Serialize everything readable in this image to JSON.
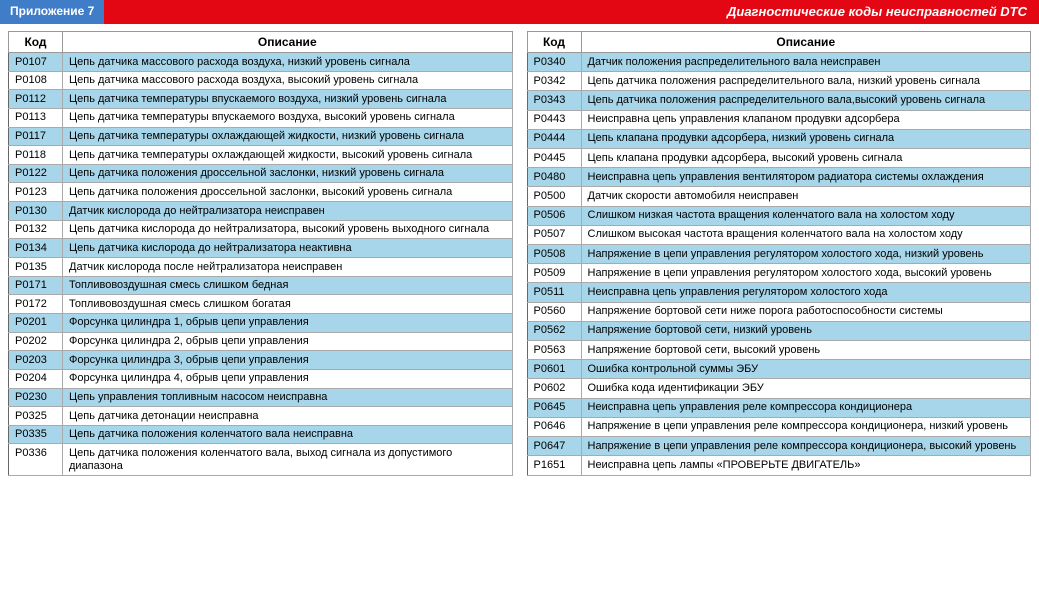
{
  "header": {
    "left": "Приложение 7",
    "right": "Диагностические коды неисправностей DTC"
  },
  "table_headers": {
    "code": "Код",
    "desc": "Описание"
  },
  "colors": {
    "header_left_bg": "#3f7dc8",
    "header_right_bg": "#e30613",
    "alt_row_bg": "#a7d5e9",
    "norm_row_bg": "#ffffff",
    "border": "#999999",
    "text": "#000000"
  },
  "left_table": [
    {
      "code": "P0107",
      "desc": "Цепь датчика массового расхода воздуха, низкий уровень сигнала"
    },
    {
      "code": "P0108",
      "desc": "Цепь датчика массового расхода воздуха, высокий уровень сигнала"
    },
    {
      "code": "P0112",
      "desc": "Цепь датчика температуры впускаемого воздуха, низкий уровень сигнала"
    },
    {
      "code": "P0113",
      "desc": "Цепь датчика температуры впускаемого воздуха, высокий уровень сигнала"
    },
    {
      "code": "P0117",
      "desc": "Цепь датчика температуры охлаждающей жидкости, низкий уровень сигнала"
    },
    {
      "code": "P0118",
      "desc": "Цепь датчика температуры охлаждающей жидкости, высокий уровень сигнала"
    },
    {
      "code": "P0122",
      "desc": "Цепь датчика положения дроссельной заслонки, низкий уровень сигнала"
    },
    {
      "code": "P0123",
      "desc": "Цепь датчика положения дроссельной заслонки, высокий уровень сигнала"
    },
    {
      "code": "P0130",
      "desc": "Датчик кислорода до нейтрализатора неисправен"
    },
    {
      "code": "P0132",
      "desc": "Цепь датчика кислорода до нейтрализатора, высокий уровень выходного сигнала"
    },
    {
      "code": "P0134",
      "desc": "Цепь датчика кислорода до нейтрализатора неактивна"
    },
    {
      "code": "P0135",
      "desc": "Датчик кислорода после нейтрализатора неисправен"
    },
    {
      "code": "P0171",
      "desc": "Топливовоздушная смесь слишком бедная"
    },
    {
      "code": "P0172",
      "desc": "Топливовоздушная смесь слишком богатая"
    },
    {
      "code": "P0201",
      "desc": "Форсунка цилиндра 1, обрыв цепи управления"
    },
    {
      "code": "P0202",
      "desc": "Форсунка цилиндра 2, обрыв цепи управления"
    },
    {
      "code": "P0203",
      "desc": "Форсунка цилиндра 3, обрыв цепи управления"
    },
    {
      "code": "P0204",
      "desc": "Форсунка цилиндра 4, обрыв цепи управления"
    },
    {
      "code": "P0230",
      "desc": "Цепь управления топливным насосом неисправна"
    },
    {
      "code": "P0325",
      "desc": "Цепь датчика детонации неисправна"
    },
    {
      "code": "P0335",
      "desc": "Цепь датчика положения коленчатого вала неисправна"
    },
    {
      "code": "P0336",
      "desc": "Цепь датчика положения коленчатого вала, выход сигнала из допустимого диапазона"
    }
  ],
  "right_table": [
    {
      "code": "P0340",
      "desc": "Датчик положения распределительного вала неисправен"
    },
    {
      "code": "P0342",
      "desc": "Цепь датчика положения распределительного вала, низкий уровень сигнала"
    },
    {
      "code": "P0343",
      "desc": "Цепь датчика положения распределительного вала,высокий уровень сигнала"
    },
    {
      "code": "P0443",
      "desc": "Неисправна цепь управления клапаном продувки адсорбера"
    },
    {
      "code": "P0444",
      "desc": "Цепь клапана продувки адсорбера, низкий уровень сигнала"
    },
    {
      "code": "P0445",
      "desc": "Цепь клапана продувки адсорбера, высокий уровень сигнала"
    },
    {
      "code": "P0480",
      "desc": "Неисправна цепь управления вентилятором радиатора системы охлаждения"
    },
    {
      "code": "P0500",
      "desc": "Датчик скорости автомобиля неисправен"
    },
    {
      "code": "P0506",
      "desc": "Слишком низкая частота вращения коленчатого вала на холостом ходу"
    },
    {
      "code": "P0507",
      "desc": "Слишком высокая частота вращения коленчатого вала на холостом ходу"
    },
    {
      "code": "P0508",
      "desc": "Напряжение в цепи управления регулятором холостого хода, низкий уровень"
    },
    {
      "code": "P0509",
      "desc": "Напряжение в цепи управления регулятором холостого хода, высокий уровень"
    },
    {
      "code": "P0511",
      "desc": "Неисправна цепь управления регулятором холостого хода"
    },
    {
      "code": "P0560",
      "desc": "Напряжение бортовой сети ниже порога работоспособности системы"
    },
    {
      "code": "P0562",
      "desc": "Напряжение бортовой сети, низкий уровень"
    },
    {
      "code": "P0563",
      "desc": "Напряжение бортовой сети, высокий уровень"
    },
    {
      "code": "P0601",
      "desc": "Ошибка контрольной суммы ЭБУ"
    },
    {
      "code": "P0602",
      "desc": "Ошибка кода идентификации ЭБУ"
    },
    {
      "code": "P0645",
      "desc": "Неисправна цепь управления реле компрессора кондиционера"
    },
    {
      "code": "P0646",
      "desc": "Напряжение в цепи управления реле компрессора кондиционера, низкий уровень"
    },
    {
      "code": "P0647",
      "desc": "Напряжение в цепи управления реле компрессора кондиционера, высокий уровень"
    },
    {
      "code": "P1651",
      "desc": "Неисправна цепь лампы «ПРОВЕРЬТЕ ДВИГАТЕЛЬ»"
    }
  ]
}
